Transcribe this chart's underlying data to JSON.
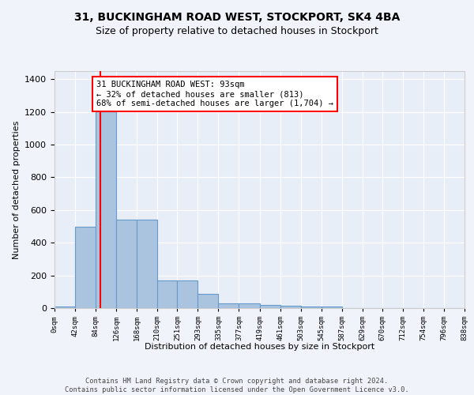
{
  "title1": "31, BUCKINGHAM ROAD WEST, STOCKPORT, SK4 4BA",
  "title2": "Size of property relative to detached houses in Stockport",
  "xlabel": "Distribution of detached houses by size in Stockport",
  "ylabel": "Number of detached properties",
  "bin_labels": [
    "0sqm",
    "42sqm",
    "84sqm",
    "126sqm",
    "168sqm",
    "210sqm",
    "251sqm",
    "293sqm",
    "335sqm",
    "377sqm",
    "419sqm",
    "461sqm",
    "503sqm",
    "545sqm",
    "587sqm",
    "629sqm",
    "670sqm",
    "712sqm",
    "754sqm",
    "796sqm",
    "838sqm"
  ],
  "bin_edges": [
    0,
    42,
    84,
    126,
    168,
    210,
    251,
    293,
    335,
    377,
    419,
    461,
    503,
    545,
    587,
    629,
    670,
    712,
    754,
    796,
    838
  ],
  "bar_heights": [
    10,
    500,
    1300,
    540,
    540,
    170,
    170,
    85,
    30,
    30,
    20,
    15,
    10,
    10,
    0,
    0,
    0,
    0,
    0,
    0
  ],
  "bar_color": "#aac4e0",
  "bar_edge_color": "#6699cc",
  "red_line_x": 93,
  "ylim": [
    0,
    1450
  ],
  "yticks": [
    0,
    200,
    400,
    600,
    800,
    1000,
    1200,
    1400
  ],
  "annotation_text": "31 BUCKINGHAM ROAD WEST: 93sqm\n← 32% of detached houses are smaller (813)\n68% of semi-detached houses are larger (1,704) →",
  "footer": "Contains HM Land Registry data © Crown copyright and database right 2024.\nContains public sector information licensed under the Open Government Licence v3.0.",
  "bg_color": "#f0f4fa",
  "plot_bg_color": "#e8eef8",
  "grid_color": "#ffffff"
}
